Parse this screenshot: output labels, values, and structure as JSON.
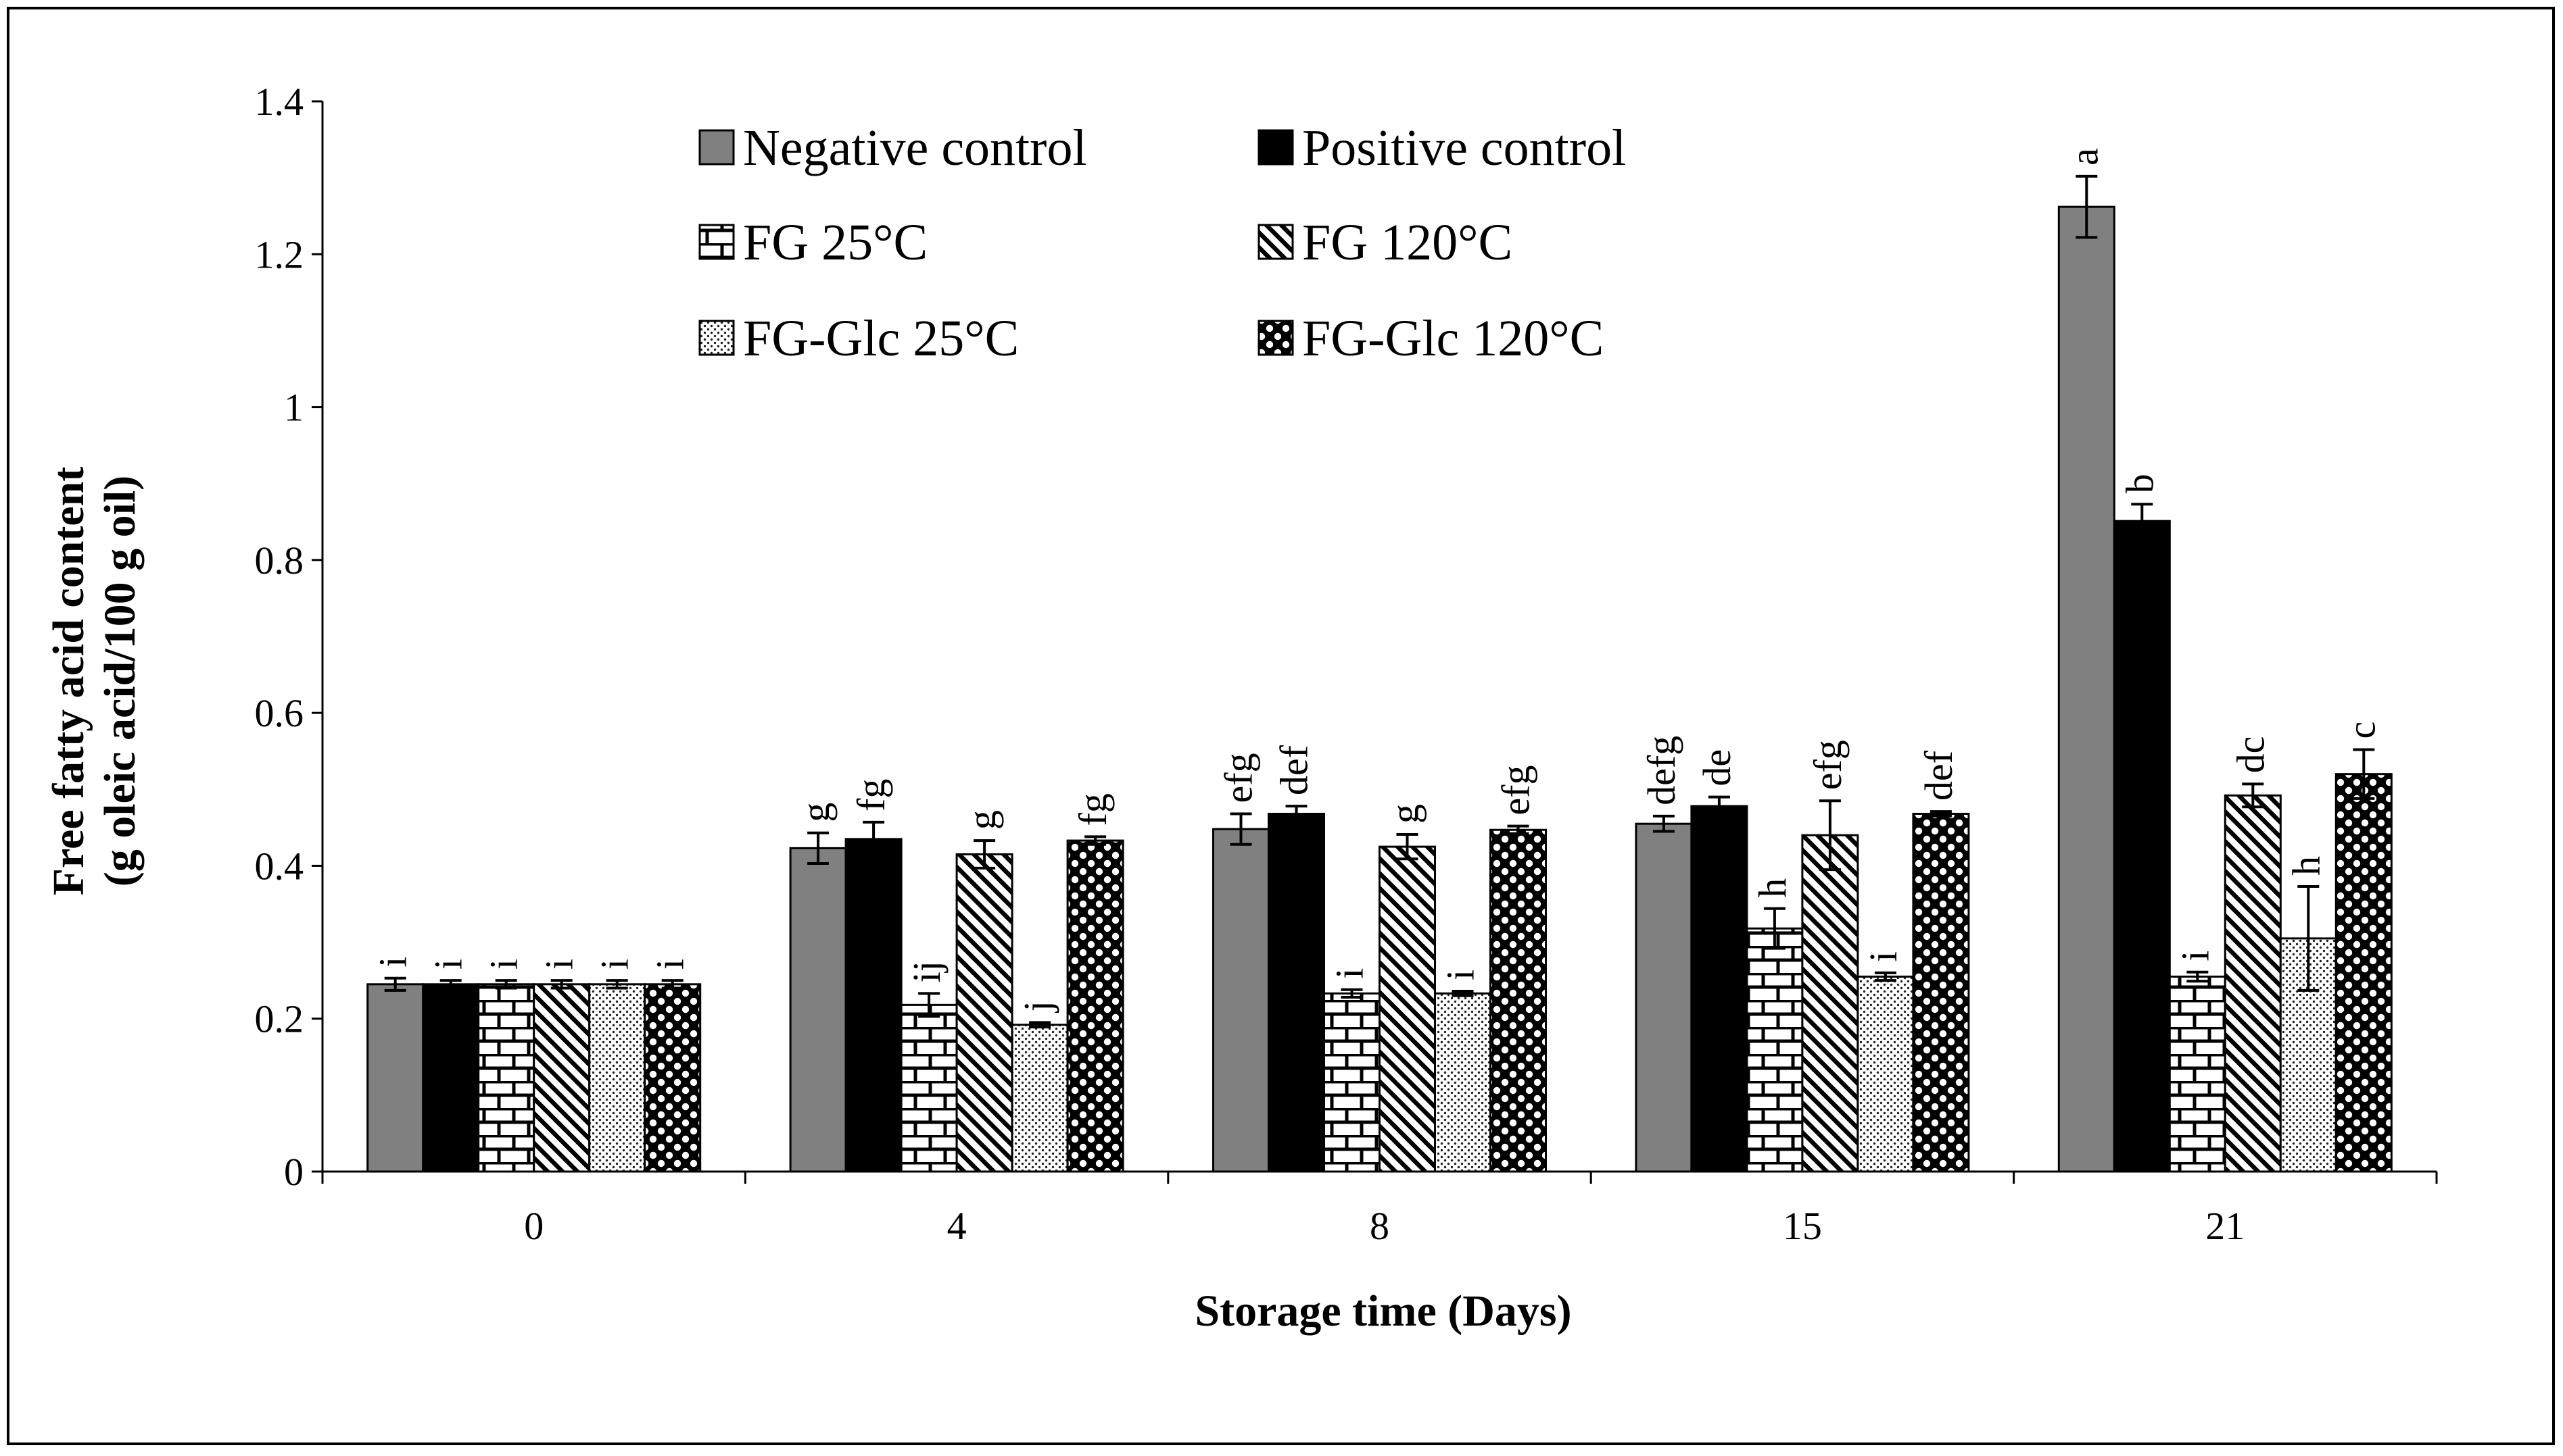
{
  "chart_data": {
    "type": "bar",
    "title": "",
    "xlabel": "Storage time (Days)",
    "ylabel": [
      "Free fatty acid content",
      "(g oleic acid/100 g oil)"
    ],
    "ylim": [
      0,
      1.4
    ],
    "yticks": [
      "0",
      "0.2",
      "0.4",
      "0.6",
      "0.8",
      "1",
      "1.2",
      "1.4"
    ],
    "categories": [
      "0",
      "4",
      "8",
      "15",
      "21"
    ],
    "legend_position": "top",
    "series": [
      {
        "name": "Negative control",
        "pattern": "gray",
        "values": [
          0.245,
          0.423,
          0.448,
          0.455,
          1.262
        ],
        "errors": [
          0.008,
          0.02,
          0.02,
          0.01,
          0.04
        ],
        "labels": [
          "i",
          "g",
          "efg",
          "defg",
          "a"
        ]
      },
      {
        "name": "Positive control",
        "pattern": "black",
        "values": [
          0.245,
          0.435,
          0.468,
          0.478,
          0.851
        ],
        "errors": [
          0.005,
          0.022,
          0.01,
          0.012,
          0.022
        ],
        "labels": [
          "i",
          "fg",
          "def",
          "de",
          "b"
        ]
      },
      {
        "name": "FG 25°C",
        "pattern": "brick",
        "values": [
          0.245,
          0.218,
          0.233,
          0.318,
          0.255
        ],
        "errors": [
          0.005,
          0.015,
          0.005,
          0.026,
          0.006
        ],
        "labels": [
          "i",
          "ij",
          "i",
          "h",
          "i"
        ]
      },
      {
        "name": "FG 120°C",
        "pattern": "diagonal",
        "values": [
          0.245,
          0.415,
          0.425,
          0.44,
          0.492
        ],
        "errors": [
          0.005,
          0.018,
          0.016,
          0.045,
          0.015
        ],
        "labels": [
          "i",
          "g",
          "g",
          "efg",
          "dc"
        ]
      },
      {
        "name": "FG-Glc 25°C",
        "pattern": "dots",
        "values": [
          0.245,
          0.192,
          0.233,
          0.255,
          0.305
        ],
        "errors": [
          0.005,
          0.003,
          0.003,
          0.005,
          0.068
        ],
        "labels": [
          "i",
          "j",
          "i",
          "i",
          "h"
        ]
      },
      {
        "name": "FG-Glc 120°C",
        "pattern": "checker",
        "values": [
          0.245,
          0.433,
          0.447,
          0.468,
          0.52
        ],
        "errors": [
          0.005,
          0.005,
          0.005,
          0.003,
          0.032
        ],
        "labels": [
          "i",
          "fg",
          "efg",
          "def",
          "c"
        ]
      }
    ]
  }
}
